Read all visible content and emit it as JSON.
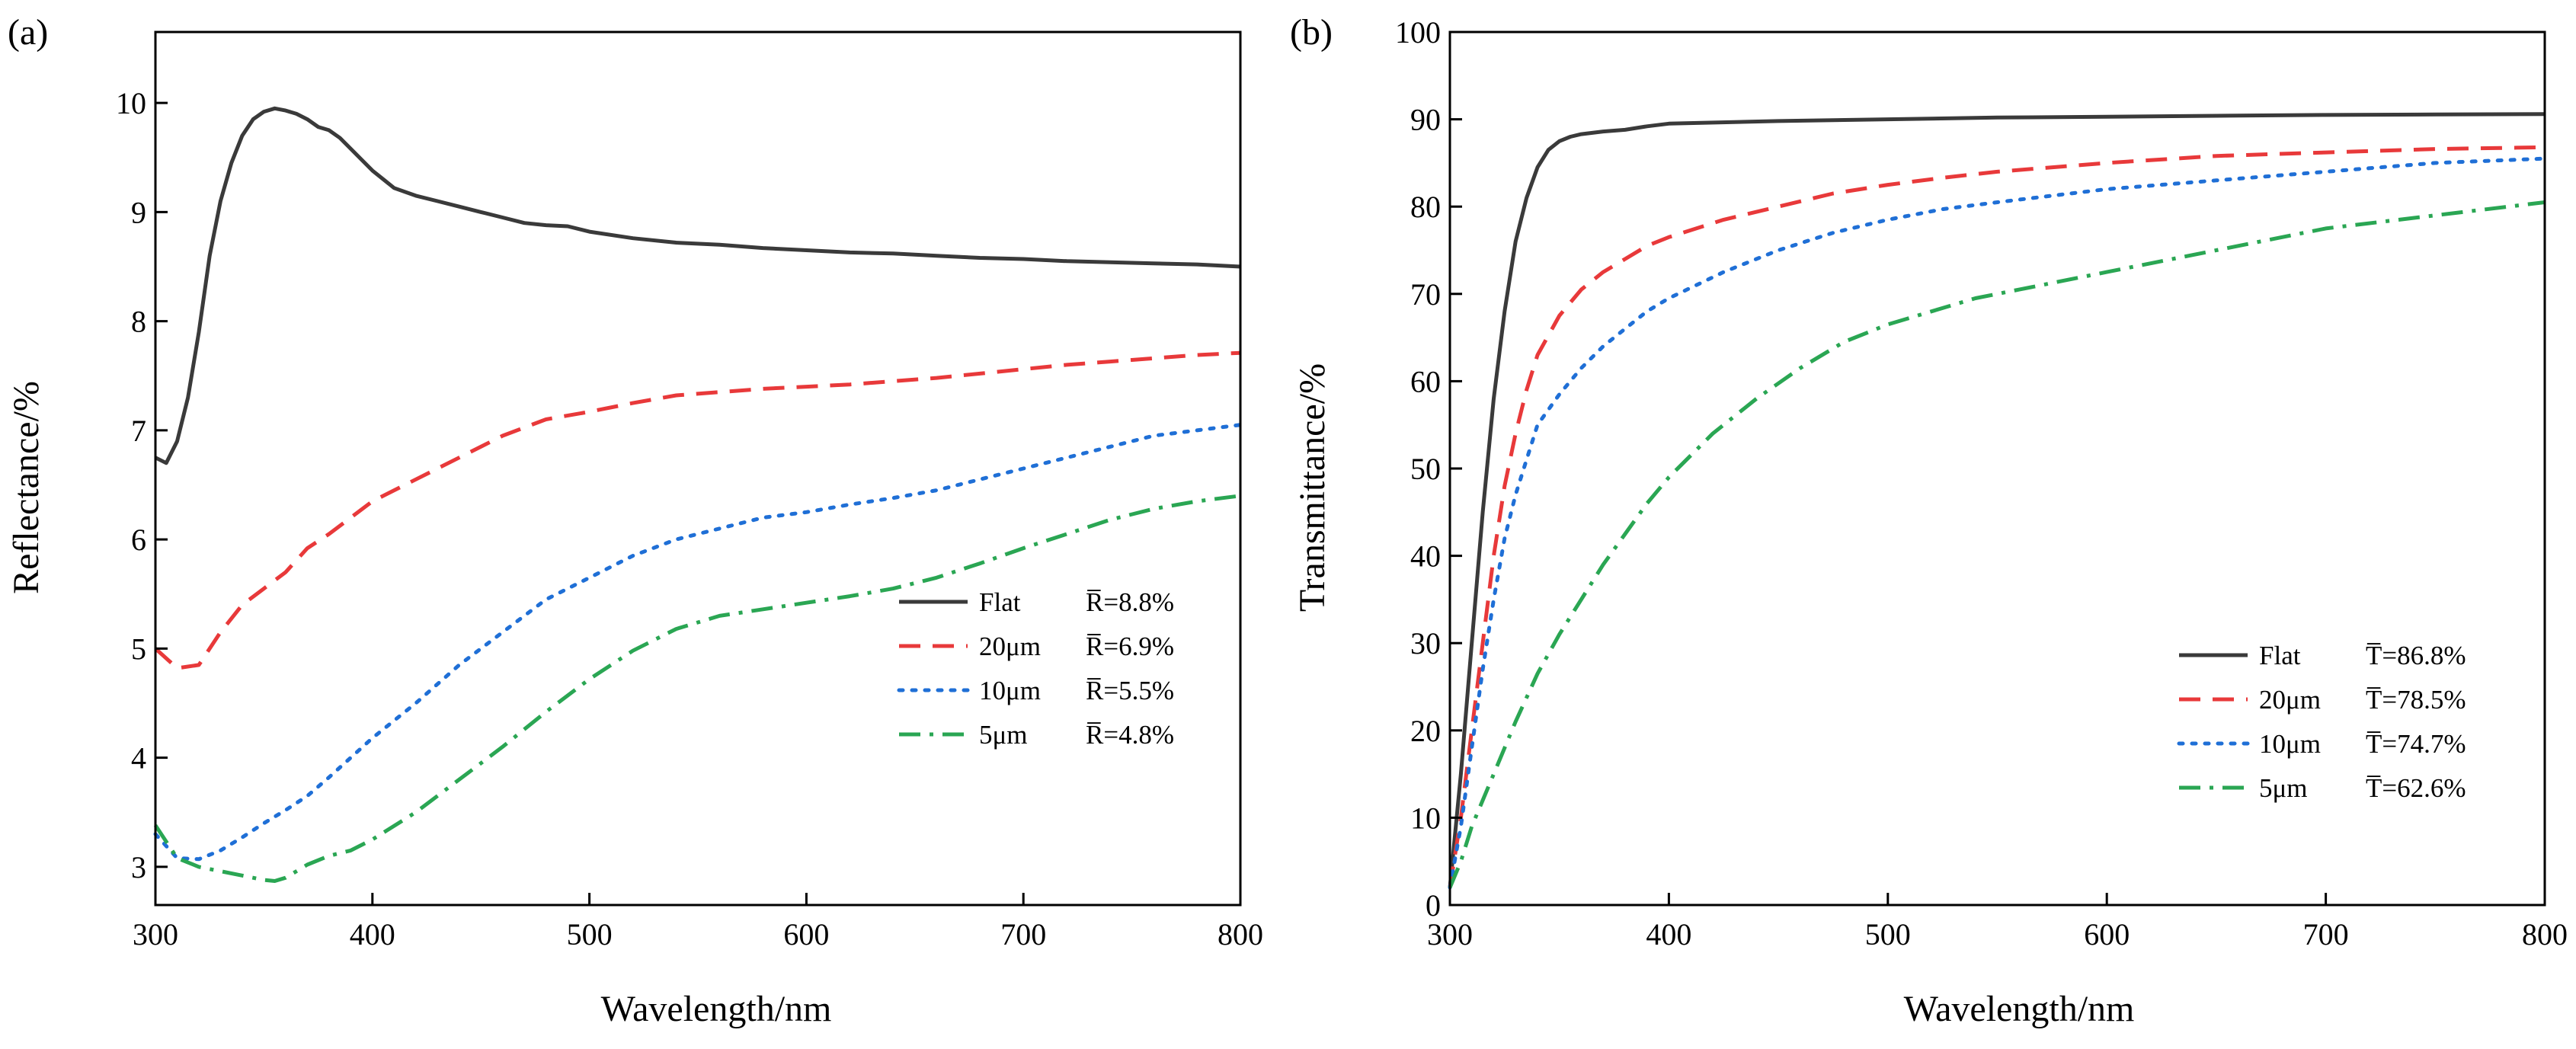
{
  "chart_data": [
    {
      "panel_label": "(a)",
      "type": "line",
      "title": "",
      "xlabel": "Wavelength/nm",
      "ylabel": "Reflectance/%",
      "xlim": [
        300,
        800
      ],
      "ylim": [
        2.65,
        10.65
      ],
      "xticks": [
        "300",
        "400",
        "500",
        "600",
        "700",
        "800"
      ],
      "yticks": [
        "3",
        "4",
        "5",
        "6",
        "7",
        "8",
        "9",
        "10"
      ],
      "grid": false,
      "legend_position": "bottom-right",
      "series": [
        {
          "name": "Flat",
          "mean_label": "R̅=8.8%",
          "color": "#3a3a3a",
          "style": "solid",
          "x": [
            300,
            305,
            310,
            315,
            320,
            325,
            330,
            335,
            340,
            345,
            350,
            355,
            360,
            365,
            370,
            375,
            380,
            385,
            390,
            395,
            400,
            410,
            420,
            430,
            440,
            450,
            460,
            470,
            480,
            490,
            500,
            520,
            540,
            560,
            580,
            600,
            620,
            640,
            660,
            680,
            700,
            720,
            740,
            760,
            780,
            800
          ],
          "values": [
            6.75,
            6.7,
            6.9,
            7.3,
            7.9,
            8.6,
            9.1,
            9.45,
            9.7,
            9.85,
            9.92,
            9.95,
            9.93,
            9.9,
            9.85,
            9.78,
            9.75,
            9.68,
            9.58,
            9.48,
            9.38,
            9.22,
            9.15,
            9.1,
            9.05,
            9.0,
            8.95,
            8.9,
            8.88,
            8.87,
            8.82,
            8.76,
            8.72,
            8.7,
            8.67,
            8.65,
            8.63,
            8.62,
            8.6,
            8.58,
            8.57,
            8.55,
            8.54,
            8.53,
            8.52,
            8.5
          ]
        },
        {
          "name": "20μm",
          "mean_label": "R̅=6.9%",
          "color": "#e8393a",
          "style": "dash",
          "x": [
            300,
            310,
            320,
            330,
            340,
            350,
            360,
            370,
            380,
            390,
            400,
            420,
            440,
            460,
            480,
            500,
            520,
            540,
            560,
            580,
            600,
            620,
            640,
            660,
            680,
            700,
            720,
            740,
            760,
            780,
            800
          ],
          "values": [
            5.0,
            4.82,
            4.85,
            5.15,
            5.4,
            5.55,
            5.7,
            5.92,
            6.05,
            6.2,
            6.35,
            6.55,
            6.75,
            6.95,
            7.1,
            7.17,
            7.25,
            7.32,
            7.35,
            7.38,
            7.4,
            7.42,
            7.45,
            7.48,
            7.52,
            7.56,
            7.6,
            7.63,
            7.66,
            7.69,
            7.71
          ]
        },
        {
          "name": "10μm",
          "mean_label": "R̅=5.5%",
          "color": "#1f6fd6",
          "style": "dot",
          "x": [
            300,
            310,
            320,
            330,
            340,
            350,
            360,
            370,
            380,
            390,
            400,
            420,
            440,
            460,
            480,
            500,
            520,
            540,
            560,
            580,
            600,
            620,
            640,
            660,
            680,
            700,
            720,
            740,
            760,
            780,
            800
          ],
          "values": [
            3.3,
            3.08,
            3.07,
            3.15,
            3.27,
            3.4,
            3.52,
            3.65,
            3.82,
            4.0,
            4.18,
            4.5,
            4.85,
            5.15,
            5.45,
            5.65,
            5.85,
            6.0,
            6.1,
            6.2,
            6.25,
            6.32,
            6.38,
            6.45,
            6.55,
            6.65,
            6.75,
            6.85,
            6.95,
            7.0,
            7.05
          ]
        },
        {
          "name": "5μm",
          "mean_label": "R̅=4.8%",
          "color": "#2aa653",
          "style": "dashdot",
          "x": [
            300,
            310,
            320,
            330,
            340,
            350,
            355,
            360,
            370,
            380,
            390,
            400,
            420,
            440,
            460,
            480,
            500,
            520,
            540,
            560,
            580,
            600,
            620,
            640,
            660,
            680,
            700,
            720,
            740,
            760,
            780,
            800
          ],
          "values": [
            3.38,
            3.08,
            3.0,
            2.96,
            2.92,
            2.88,
            2.87,
            2.9,
            3.02,
            3.1,
            3.15,
            3.25,
            3.5,
            3.8,
            4.1,
            4.42,
            4.72,
            4.98,
            5.18,
            5.3,
            5.36,
            5.42,
            5.48,
            5.55,
            5.65,
            5.78,
            5.92,
            6.05,
            6.18,
            6.28,
            6.35,
            6.4
          ]
        }
      ]
    },
    {
      "panel_label": "(b)",
      "type": "line",
      "title": "",
      "xlabel": "Wavelength/nm",
      "ylabel": "Transmittance/%",
      "xlim": [
        300,
        800
      ],
      "ylim": [
        0,
        100
      ],
      "xticks": [
        "300",
        "400",
        "500",
        "600",
        "700",
        "800"
      ],
      "yticks": [
        "0",
        "10",
        "20",
        "30",
        "40",
        "50",
        "60",
        "70",
        "80",
        "90",
        "100"
      ],
      "grid": false,
      "legend_position": "bottom-right",
      "series": [
        {
          "name": "Flat",
          "mean_label": "T̅=86.8%",
          "color": "#3a3a3a",
          "style": "solid",
          "x": [
            300,
            305,
            310,
            315,
            320,
            325,
            330,
            335,
            340,
            345,
            350,
            355,
            360,
            370,
            380,
            390,
            400,
            450,
            500,
            550,
            600,
            650,
            700,
            750,
            800
          ],
          "values": [
            2,
            15,
            30,
            45,
            58,
            68,
            76,
            81,
            84.5,
            86.5,
            87.5,
            88,
            88.3,
            88.6,
            88.8,
            89.2,
            89.5,
            89.8,
            90,
            90.2,
            90.3,
            90.4,
            90.5,
            90.55,
            90.6
          ]
        },
        {
          "name": "20μm",
          "mean_label": "T̅=78.5%",
          "color": "#e8393a",
          "style": "dash",
          "x": [
            300,
            305,
            310,
            315,
            320,
            325,
            330,
            335,
            340,
            350,
            360,
            370,
            380,
            390,
            400,
            425,
            450,
            475,
            500,
            525,
            550,
            600,
            650,
            700,
            750,
            800
          ],
          "values": [
            2,
            10,
            20,
            30,
            40,
            48,
            54,
            59,
            63,
            67.5,
            70.5,
            72.5,
            74,
            75.5,
            76.5,
            78.5,
            80,
            81.5,
            82.5,
            83.3,
            84,
            85,
            85.8,
            86.2,
            86.6,
            86.8
          ]
        },
        {
          "name": "10μm",
          "mean_label": "T̅=74.7%",
          "color": "#1f6fd6",
          "style": "dot",
          "x": [
            300,
            305,
            310,
            315,
            320,
            325,
            330,
            335,
            340,
            350,
            360,
            370,
            380,
            390,
            400,
            425,
            450,
            475,
            500,
            525,
            550,
            600,
            650,
            700,
            750,
            800
          ],
          "values": [
            2,
            9,
            18,
            27,
            35,
            42,
            47,
            51,
            55,
            58.5,
            61.5,
            64,
            66,
            68,
            69.5,
            72.5,
            75,
            77,
            78.5,
            79.7,
            80.5,
            82,
            83,
            84,
            85,
            85.5
          ]
        },
        {
          "name": "5μm",
          "mean_label": "T̅=62.6%",
          "color": "#2aa653",
          "style": "dashdot",
          "x": [
            300,
            305,
            310,
            320,
            330,
            340,
            350,
            360,
            370,
            380,
            390,
            400,
            420,
            440,
            460,
            480,
            500,
            520,
            540,
            560,
            580,
            600,
            650,
            700,
            750,
            800
          ],
          "values": [
            2,
            5,
            9,
            15,
            21,
            26.5,
            31,
            35,
            39,
            42.5,
            46,
            49,
            54,
            58,
            61.5,
            64.5,
            66.5,
            68,
            69.5,
            70.5,
            71.5,
            72.5,
            75,
            77.5,
            79,
            80.5
          ]
        }
      ]
    }
  ]
}
